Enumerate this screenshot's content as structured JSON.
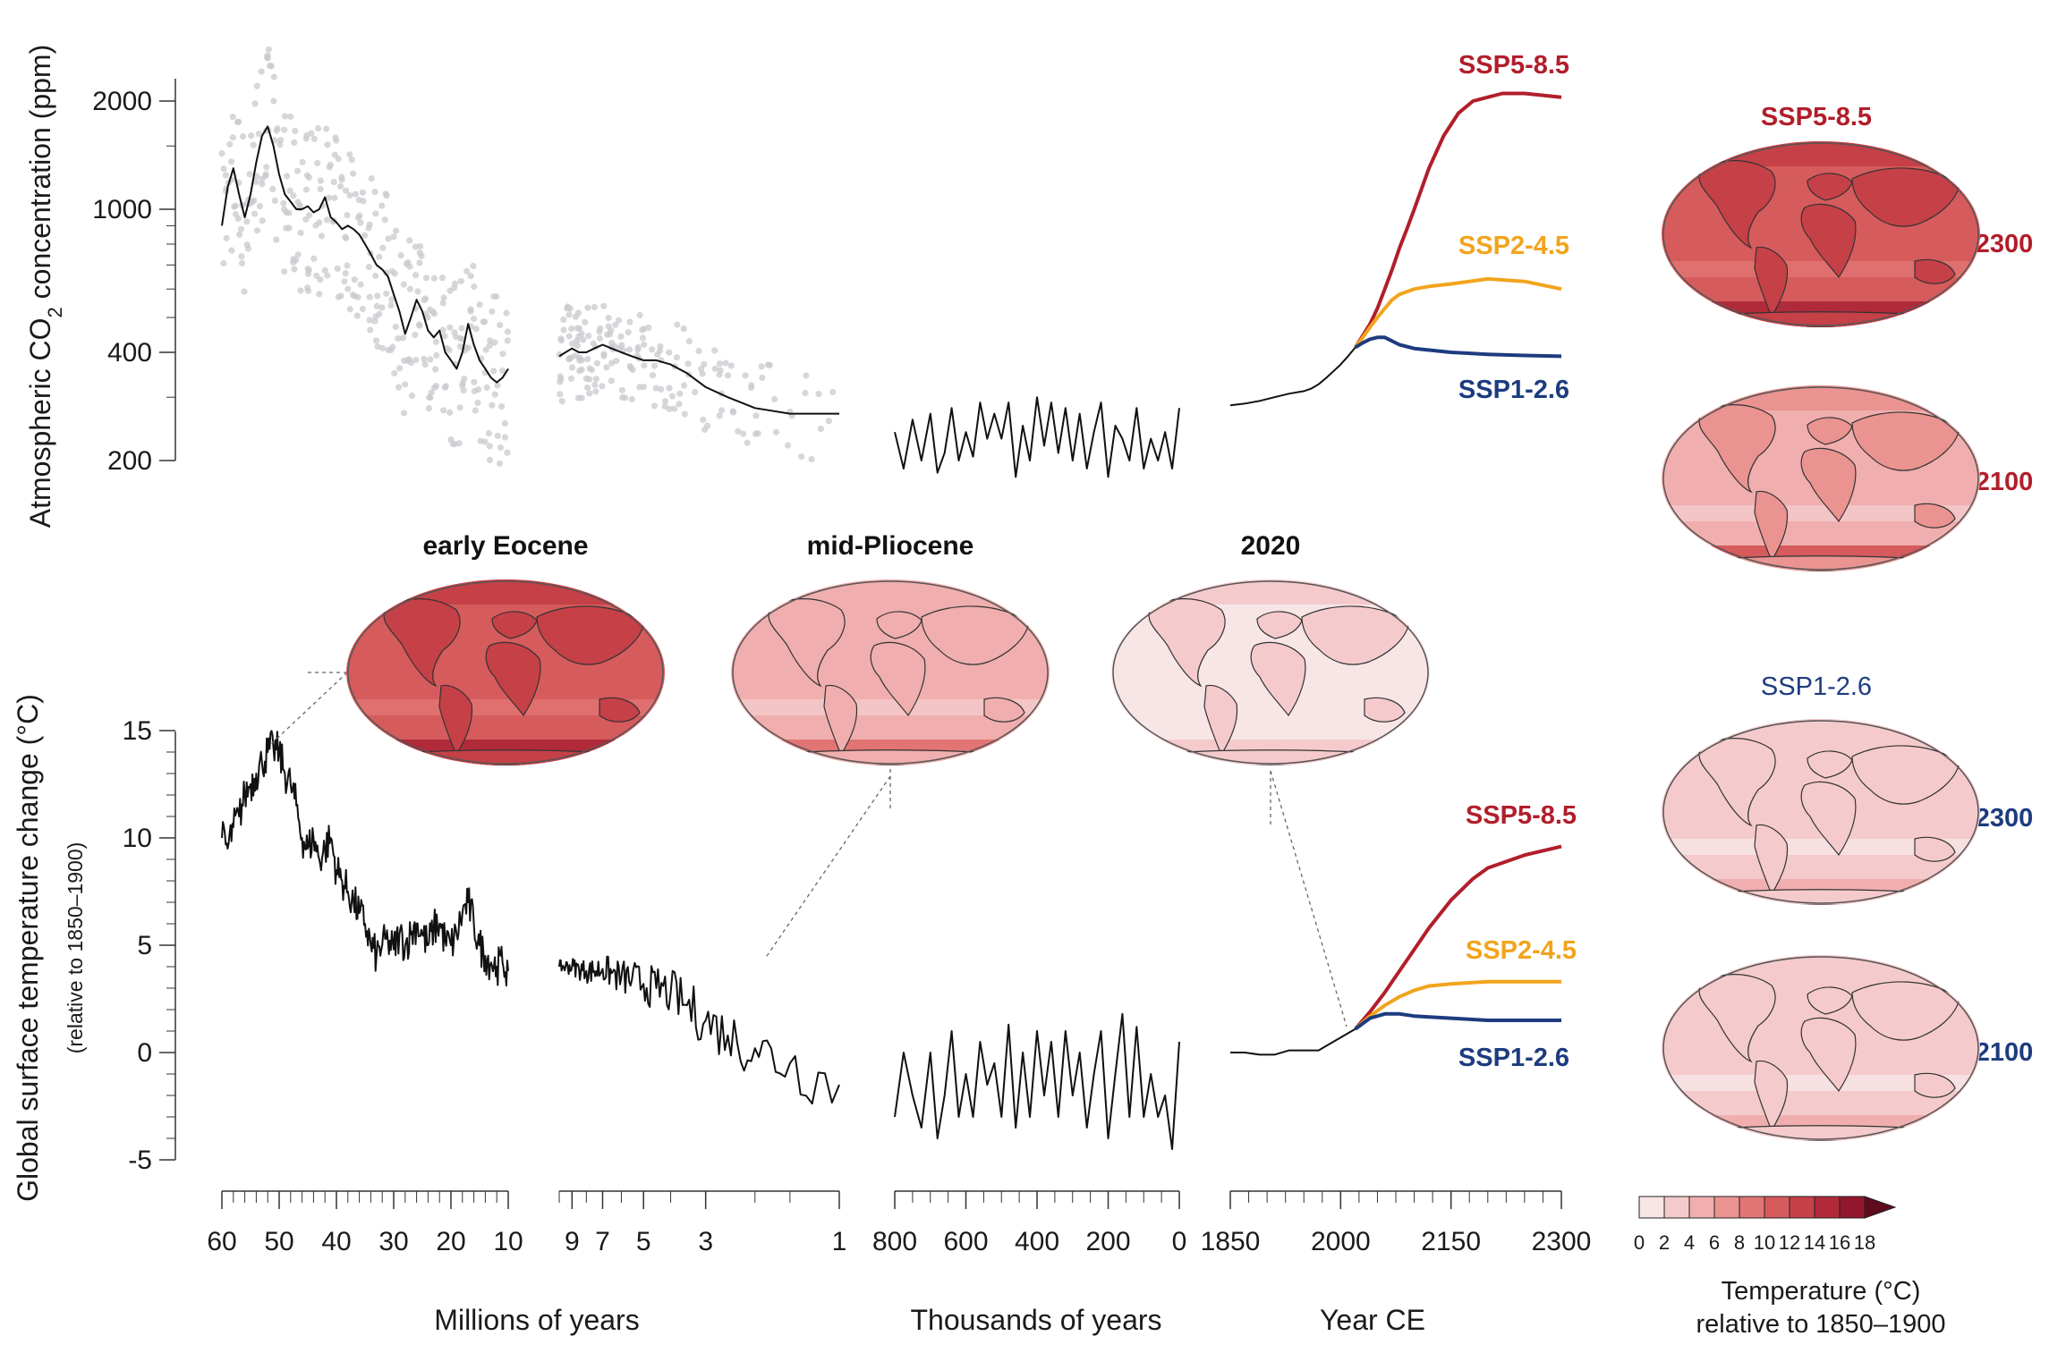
{
  "chart_data": [
    {
      "type": "line",
      "panel": "co2",
      "ylabel": "Atmospheric CO2 concentration (ppm)",
      "ylabel_main": "Atmospheric CO",
      "ylabel_sub": "2",
      "ylabel_tail": " concentration (ppm)",
      "yscale": "log",
      "ylim": [
        150,
        2600
      ],
      "yticks": [
        200,
        400,
        1000,
        2000
      ],
      "segments": [
        {
          "xlabel": "Millions of years",
          "xrange": [
            60,
            10
          ],
          "xticks": [
            60,
            50,
            40,
            30,
            20,
            10
          ],
          "series": [
            {
              "x": [
                60,
                59,
                58,
                57,
                56,
                55,
                54,
                53,
                52,
                51,
                50,
                49,
                48,
                47,
                46,
                45,
                44,
                43,
                42,
                41,
                40,
                39,
                38,
                37,
                36,
                35,
                34,
                33,
                32,
                31,
                30,
                29,
                28,
                27,
                26,
                25,
                24,
                23,
                22,
                21,
                20,
                19,
                18,
                17,
                16,
                15,
                14,
                13,
                12,
                11,
                10
              ],
              "y": [
                900,
                1150,
                1300,
                1100,
                950,
                1100,
                1350,
                1600,
                1700,
                1500,
                1250,
                1100,
                1050,
                1000,
                1000,
                1020,
                980,
                1000,
                1080,
                950,
                920,
                880,
                900,
                880,
                850,
                800,
                750,
                700,
                680,
                650,
                580,
                520,
                450,
                500,
                560,
                520,
                460,
                440,
                460,
                400,
                380,
                360,
                400,
                480,
                420,
                380,
                360,
                340,
                330,
                340,
                360
              ]
            }
          ]
        },
        {
          "xlabel": "Millions of years",
          "xrange": [
            10,
            1
          ],
          "xticks": [
            9,
            7,
            5,
            3,
            1
          ],
          "series": [
            {
              "x": [
                10,
                9.5,
                9,
                8.5,
                8,
                7.5,
                7,
                6.5,
                6,
                5.5,
                5,
                4.5,
                4,
                3.5,
                3,
                2.5,
                2,
                1.5,
                1
              ],
              "y": [
                390,
                400,
                410,
                400,
                400,
                410,
                420,
                410,
                400,
                390,
                380,
                380,
                370,
                350,
                320,
                300,
                280,
                270,
                270
              ]
            }
          ]
        },
        {
          "xlabel": "Thousands of years",
          "xrange": [
            800,
            0
          ],
          "xticks": [
            800,
            600,
            400,
            200,
            0
          ],
          "series": [
            {
              "x": [
                800,
                775,
                750,
                725,
                700,
                680,
                660,
                640,
                620,
                600,
                580,
                560,
                540,
                520,
                500,
                480,
                460,
                440,
                420,
                400,
                380,
                360,
                340,
                320,
                300,
                280,
                260,
                240,
                220,
                200,
                180,
                160,
                140,
                120,
                100,
                80,
                60,
                40,
                20,
                10,
                0
              ],
              "y": [
                240,
                190,
                260,
                200,
                270,
                185,
                210,
                280,
                200,
                240,
                205,
                290,
                230,
                270,
                230,
                290,
                180,
                250,
                200,
                300,
                220,
                290,
                210,
                280,
                200,
                270,
                190,
                240,
                290,
                180,
                250,
                230,
                200,
                280,
                190,
                230,
                200,
                240,
                190,
                230,
                280
              ]
            }
          ]
        },
        {
          "xlabel": "Year CE",
          "xrange": [
            1850,
            2300
          ],
          "xticks": [
            1850,
            2000,
            2150,
            2300
          ],
          "series": [
            {
              "name": "historical",
              "x": [
                1850,
                1870,
                1890,
                1910,
                1930,
                1950,
                1960,
                1970,
                1980,
                1990,
                2000,
                2010,
                2020
              ],
              "y": [
                285,
                288,
                293,
                300,
                307,
                312,
                317,
                326,
                339,
                354,
                370,
                390,
                413
              ]
            },
            {
              "name": "SSP5-8.5",
              "x": [
                2020,
                2030,
                2040,
                2050,
                2060,
                2070,
                2080,
                2090,
                2100,
                2120,
                2140,
                2160,
                2180,
                2200,
                2220,
                2250,
                2300
              ],
              "y": [
                413,
                445,
                480,
                530,
                600,
                680,
                780,
                880,
                1000,
                1300,
                1600,
                1850,
                2000,
                2050,
                2100,
                2100,
                2050
              ]
            },
            {
              "name": "SSP2-4.5",
              "x": [
                2020,
                2030,
                2040,
                2050,
                2060,
                2070,
                2080,
                2100,
                2120,
                2150,
                2200,
                2250,
                2300
              ],
              "y": [
                413,
                440,
                470,
                500,
                530,
                560,
                580,
                600,
                610,
                620,
                640,
                630,
                600
              ]
            },
            {
              "name": "SSP1-2.6",
              "x": [
                2020,
                2030,
                2040,
                2050,
                2060,
                2070,
                2080,
                2100,
                2150,
                2200,
                2250,
                2300
              ],
              "y": [
                413,
                425,
                435,
                440,
                440,
                430,
                420,
                410,
                400,
                395,
                392,
                390
              ]
            }
          ]
        }
      ]
    },
    {
      "type": "line",
      "panel": "temperature",
      "ylabel": "Global surface temperature change (°C)",
      "ylabel_sub": "(relative to 1850–1900)",
      "ylim": [
        -5,
        15
      ],
      "yticks": [
        -5,
        0,
        5,
        10,
        15
      ],
      "segments": [
        {
          "xrange": [
            60,
            10
          ],
          "series": [
            {
              "x": [
                60,
                59,
                58,
                57,
                56,
                55,
                54,
                53,
                52,
                51,
                50,
                49,
                48,
                47,
                46,
                45,
                44,
                43,
                42,
                41,
                40,
                39,
                38,
                37,
                36,
                35,
                34,
                33,
                32,
                31,
                30,
                29,
                28,
                27,
                26,
                25,
                24,
                23,
                22,
                21,
                20,
                19,
                18,
                17,
                16,
                15,
                14,
                13,
                12,
                11,
                10
              ],
              "y": [
                10,
                9.5,
                10.5,
                11,
                12,
                12.5,
                13,
                13.5,
                14,
                14.2,
                14,
                13,
                12.5,
                11.5,
                10,
                9.5,
                10,
                9,
                9.5,
                10,
                8.5,
                8,
                7.5,
                7,
                6.5,
                6,
                5,
                4.5,
                5,
                5.2,
                4.8,
                5.5,
                5,
                5.5,
                6,
                5.5,
                5,
                5.8,
                6,
                5.2,
                5,
                5.5,
                6.5,
                7,
                6,
                5,
                4.5,
                4.2,
                4,
                4.2,
                3.8
              ]
            }
          ]
        },
        {
          "xrange": [
            10,
            1
          ],
          "series": [
            {
              "x": [
                10,
                9.5,
                9,
                8.5,
                8,
                7.5,
                7,
                6.5,
                6,
                5.5,
                5,
                4.5,
                4,
                3.5,
                3,
                2.5,
                2,
                1.5,
                1
              ],
              "y": [
                4,
                4,
                4,
                3.9,
                3.8,
                3.8,
                3.9,
                3.7,
                3.5,
                3.4,
                3.2,
                3,
                2.8,
                2.2,
                1.5,
                0.8,
                0.2,
                -0.5,
                -1.5
              ]
            }
          ]
        },
        {
          "xrange": [
            800,
            0
          ],
          "series": [
            {
              "x": [
                800,
                775,
                750,
                725,
                700,
                680,
                660,
                640,
                620,
                600,
                580,
                560,
                540,
                520,
                500,
                480,
                460,
                440,
                420,
                400,
                380,
                360,
                340,
                320,
                300,
                280,
                260,
                240,
                220,
                200,
                180,
                160,
                140,
                120,
                100,
                80,
                60,
                40,
                20,
                10,
                0
              ],
              "y": [
                -3,
                0,
                -2,
                -3.5,
                0,
                -4,
                -2,
                1,
                -3,
                -1,
                -3,
                0.5,
                -1.5,
                -0.5,
                -3,
                1.3,
                -3.5,
                0,
                -3,
                1,
                -2,
                0.5,
                -3,
                1,
                -2,
                0,
                -3.5,
                -1,
                1,
                -4,
                -1,
                1.8,
                -3,
                1.2,
                -3,
                -1,
                -3,
                -2,
                -4.5,
                -2,
                0.5
              ]
            }
          ]
        },
        {
          "xrange": [
            1850,
            2300
          ],
          "series": [
            {
              "name": "historical",
              "x": [
                1850,
                1870,
                1890,
                1910,
                1930,
                1950,
                1960,
                1970,
                1980,
                1990,
                2000,
                2010,
                2020
              ],
              "y": [
                0,
                0,
                -0.1,
                -0.1,
                0.1,
                0.1,
                0.1,
                0.1,
                0.3,
                0.5,
                0.7,
                0.9,
                1.1
              ]
            },
            {
              "name": "SSP5-8.5",
              "x": [
                2020,
                2040,
                2060,
                2080,
                2100,
                2120,
                2150,
                2180,
                2200,
                2250,
                2300
              ],
              "y": [
                1.1,
                1.9,
                2.8,
                3.8,
                4.8,
                5.8,
                7.1,
                8.1,
                8.6,
                9.2,
                9.6
              ]
            },
            {
              "name": "SSP2-4.5",
              "x": [
                2020,
                2040,
                2060,
                2080,
                2100,
                2120,
                2150,
                2200,
                2250,
                2300
              ],
              "y": [
                1.1,
                1.7,
                2.2,
                2.6,
                2.9,
                3.1,
                3.2,
                3.3,
                3.3,
                3.3
              ]
            },
            {
              "name": "SSP1-2.6",
              "x": [
                2020,
                2040,
                2060,
                2080,
                2100,
                2150,
                2200,
                2250,
                2300
              ],
              "y": [
                1.1,
                1.6,
                1.8,
                1.8,
                1.7,
                1.6,
                1.5,
                1.5,
                1.5
              ]
            }
          ]
        }
      ]
    }
  ],
  "axes": {
    "xlabels": [
      "Millions of years",
      "Thousands of years",
      "Year CE"
    ],
    "xtick_labels": [
      "60",
      "50",
      "40",
      "30",
      "20",
      "10",
      "9",
      "7",
      "5",
      "3",
      "1",
      "800",
      "600",
      "400",
      "200",
      "0",
      "1850",
      "2000",
      "2150",
      "2300"
    ]
  },
  "scenario_labels": {
    "ssp585": "SSP5-8.5",
    "ssp245": "SSP2-4.5",
    "ssp126": "SSP1-2.6"
  },
  "maps": {
    "titles": [
      "early Eocene",
      "mid-Pliocene",
      "2020"
    ],
    "right_header_top": "SSP5-8.5",
    "right_header_bottom": "SSP1-2.6",
    "year_labels": [
      "2300",
      "2100",
      "2300",
      "2100"
    ]
  },
  "colorbar": {
    "ticks": [
      "0",
      "2",
      "4",
      "6",
      "8",
      "10",
      "12",
      "14",
      "16",
      "18"
    ],
    "title": "Temperature (°C)",
    "subtitle": "relative to 1850–1900",
    "colors": [
      "#f8e5e6",
      "#f5cacc",
      "#f0aeae",
      "#ea9391",
      "#e27574",
      "#d65b5c",
      "#c64047",
      "#b02a3a",
      "#92172c"
    ]
  },
  "colors": {
    "ssp585": "#b11e2a",
    "ssp245": "#f2a41d",
    "ssp126": "#1d3c7f",
    "data": "#111111",
    "scatter": "#c8cacd"
  }
}
